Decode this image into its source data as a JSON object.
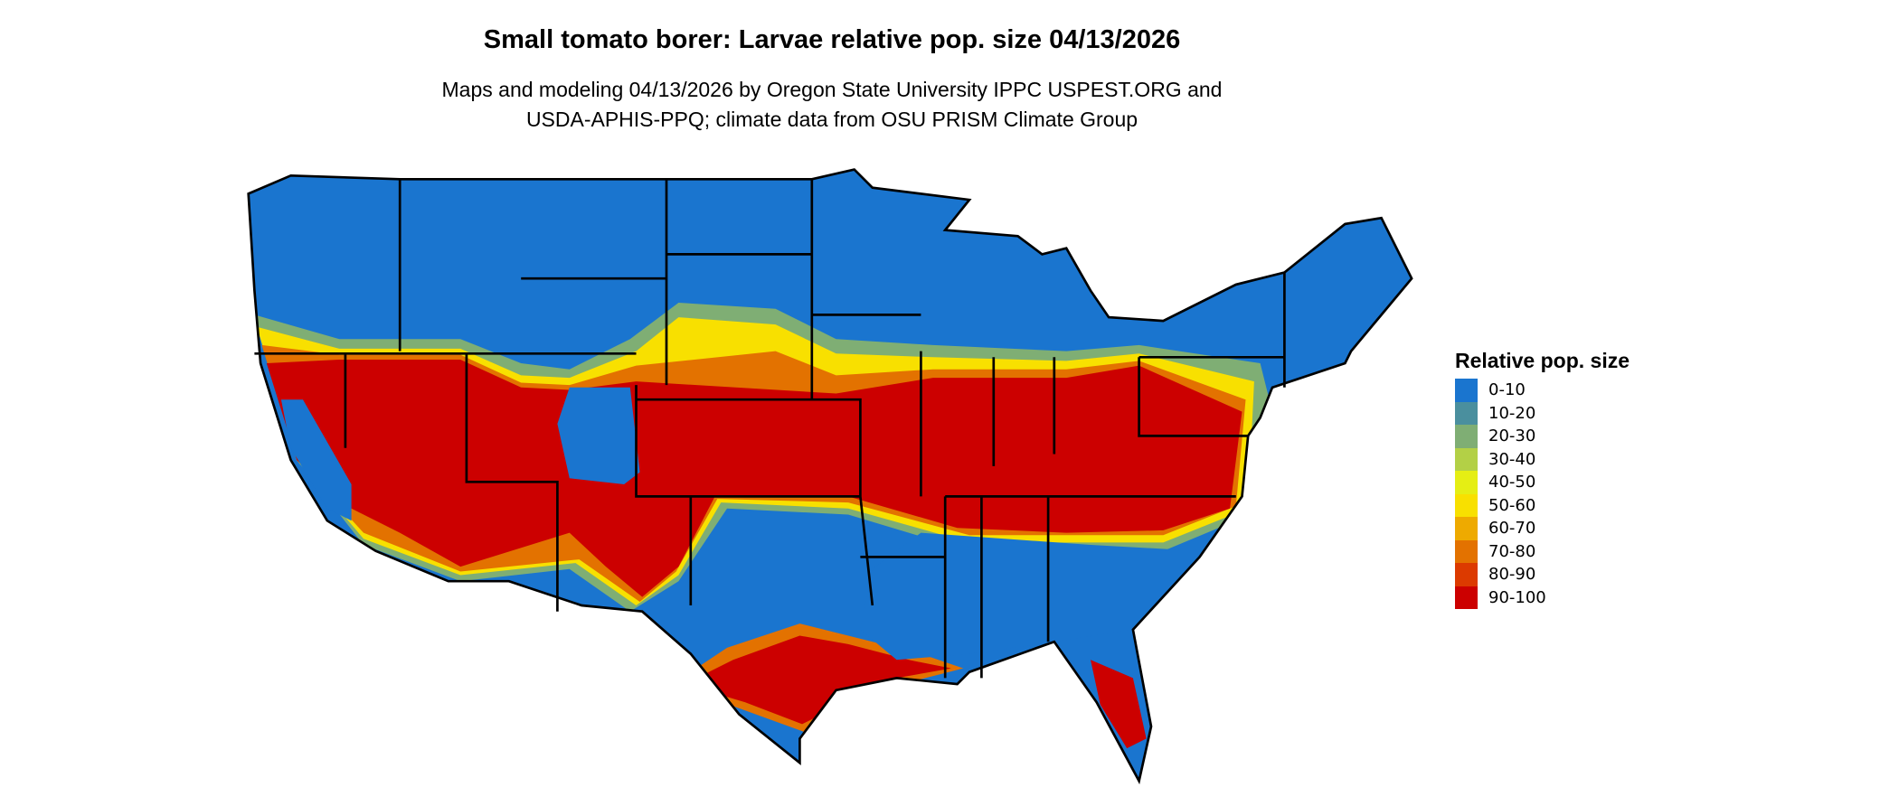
{
  "title": "Small tomato borer: Larvae relative pop. size 04/13/2026",
  "subtitle_lines": [
    "Maps and modeling 04/13/2026 by Oregon State University IPPC USPEST.ORG and",
    "USDA-APHIS-PPQ; climate data from OSU PRISM Climate Group"
  ],
  "legend": {
    "title": "Relative pop. size",
    "items": [
      {
        "label": "0-10",
        "color": "#1a75cf"
      },
      {
        "label": "10-20",
        "color": "#4a8f9e"
      },
      {
        "label": "20-30",
        "color": "#7fae74"
      },
      {
        "label": "30-40",
        "color": "#b3d046"
      },
      {
        "label": "40-50",
        "color": "#e5ee14"
      },
      {
        "label": "50-60",
        "color": "#f8e000"
      },
      {
        "label": "60-70",
        "color": "#eeaa00"
      },
      {
        "label": "70-80",
        "color": "#e37200"
      },
      {
        "label": "80-90",
        "color": "#dc3a00"
      },
      {
        "label": "90-100",
        "color": "#cc0000"
      }
    ]
  }
}
